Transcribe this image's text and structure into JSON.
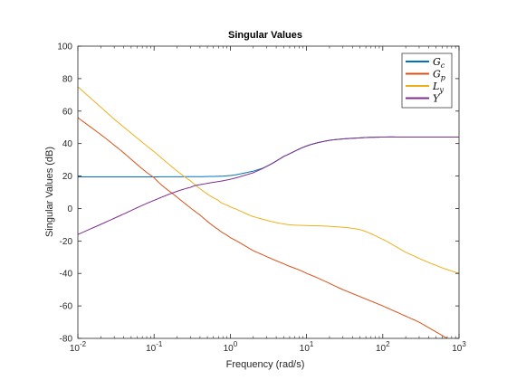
{
  "chart_data": {
    "type": "line",
    "title": "Singular Values",
    "xlabel": "Frequency (rad/s)",
    "ylabel": "Singular Values (dB)",
    "xscale": "log",
    "xlim": [
      0.01,
      1000
    ],
    "ylim": [
      -80,
      100
    ],
    "x_ticks": [
      {
        "base": "10",
        "exp": "-2"
      },
      {
        "base": "10",
        "exp": "-1"
      },
      {
        "base": "10",
        "exp": "0"
      },
      {
        "base": "10",
        "exp": "1"
      },
      {
        "base": "10",
        "exp": "2"
      },
      {
        "base": "10",
        "exp": "3"
      }
    ],
    "y_ticks": [
      "-80",
      "-60",
      "-40",
      "-20",
      "0",
      "20",
      "40",
      "60",
      "80",
      "100"
    ],
    "grid": false,
    "legend_position": "top-right",
    "series": [
      {
        "name": "G_c",
        "base": "G",
        "sub": "c",
        "color": "#0072bd",
        "x": [
          0.01,
          0.1,
          0.3,
          0.5,
          1,
          2,
          3,
          5,
          10,
          20,
          50,
          100,
          200,
          1000
        ],
        "y": [
          19.5,
          19.5,
          19.6,
          19.7,
          20.3,
          23,
          26,
          32,
          38.5,
          42,
          43.5,
          44,
          44,
          44
        ]
      },
      {
        "name": "G_p",
        "base": "G",
        "sub": "p",
        "color": "#d95319",
        "x": [
          0.01,
          0.03,
          0.1,
          0.2,
          0.4,
          0.7,
          1,
          2,
          5,
          10,
          30,
          100,
          300,
          700
        ],
        "y": [
          56,
          39,
          19,
          7,
          -4,
          -13,
          -18,
          -26,
          -34,
          -40,
          -50,
          -60,
          -70,
          -80
        ]
      },
      {
        "name": "L_y",
        "base": "L",
        "sub": "y",
        "color": "#edb120",
        "x": [
          0.01,
          0.03,
          0.1,
          0.3,
          0.7,
          1,
          2,
          5,
          10,
          20,
          50,
          100,
          200,
          500,
          1000
        ],
        "y": [
          75,
          55,
          35,
          17,
          5,
          1,
          -5,
          -9.5,
          -10.5,
          -11,
          -13,
          -19,
          -27,
          -35,
          -40
        ]
      },
      {
        "name": "Y",
        "base": "Y",
        "sub": "",
        "color": "#7e2f8e",
        "x": [
          0.01,
          0.03,
          0.1,
          0.3,
          0.5,
          1,
          2,
          3,
          5,
          10,
          20,
          50,
          100,
          200,
          1000
        ],
        "y": [
          -16,
          -6,
          5,
          13,
          15.5,
          18,
          22,
          26,
          32,
          38.5,
          42,
          43.5,
          44,
          44,
          44
        ]
      }
    ]
  }
}
